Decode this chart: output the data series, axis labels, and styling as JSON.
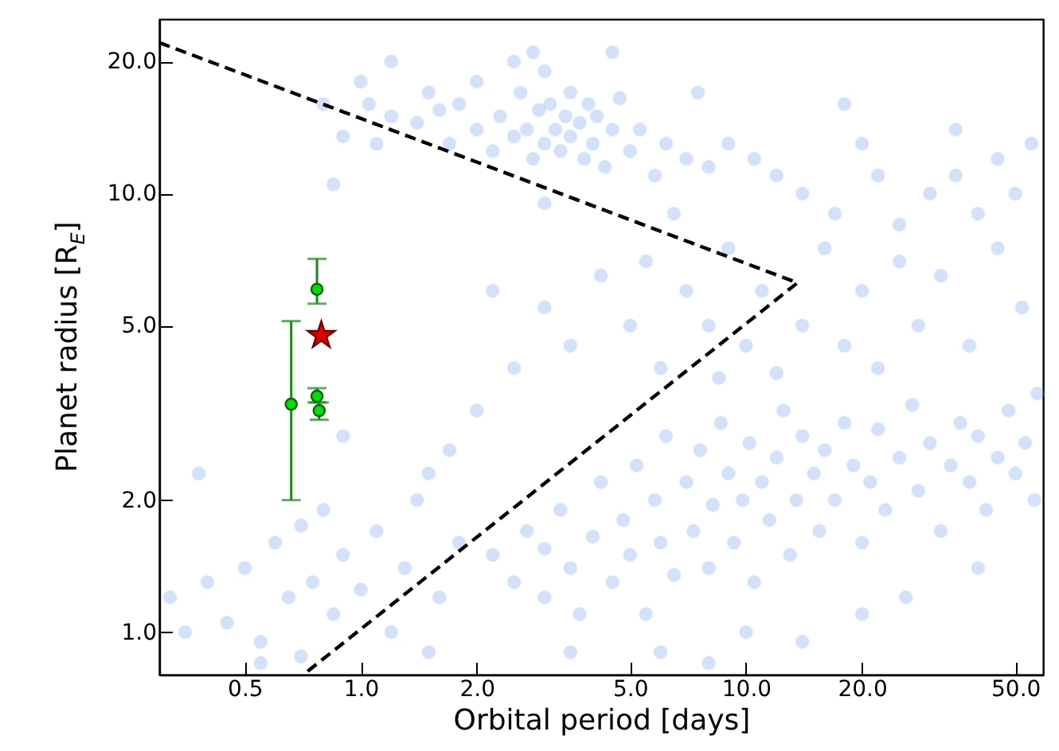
{
  "chart_data": {
    "type": "scatter",
    "xlabel": "Orbital period [days]",
    "ylabel": "Planet radius [R$_{E}$]",
    "log": "xy",
    "grid": false,
    "marker": "circle",
    "legend": false,
    "xlim": [
      0.3,
      59
    ],
    "ylim": [
      0.8,
      25
    ],
    "xticks": [
      0.5,
      {
        "value": 1,
        "label": "1.0"
      },
      {
        "value": 2,
        "label": "2.0"
      },
      {
        "value": 5,
        "label": "5.0"
      },
      {
        "value": 10,
        "label": "10.0"
      },
      {
        "value": 20,
        "label": "20.0"
      },
      {
        "value": 50,
        "label": "50.0"
      }
    ],
    "yticks": [
      {
        "value": 1,
        "label": "1.0"
      },
      {
        "value": 2,
        "label": "2.0"
      },
      {
        "value": 5,
        "label": "5.0"
      },
      {
        "value": 10,
        "label": "10.0"
      },
      {
        "value": 20,
        "label": "20.0"
      }
    ],
    "series": [
      {
        "color": "#6495ed",
        "x": [
          1.0,
          1.05,
          1.2,
          1.4,
          1.5,
          1.6,
          1.7,
          1.8,
          2.0,
          2.0,
          2.2,
          2.3,
          2.5,
          2.6,
          2.7,
          2.8,
          2.9,
          3.0,
          3.0,
          3.1,
          3.2,
          3.3,
          3.4,
          3.5,
          3.5,
          3.7,
          3.8,
          3.9,
          4.0,
          4.1,
          4.3,
          4.5,
          4.7,
          5.0,
          5.3,
          5.8,
          6.2,
          7.0,
          8.0,
          9.0,
          10.5,
          12,
          14,
          17,
          20,
          22,
          25,
          30,
          35,
          40,
          45,
          50,
          55,
          2.5,
          2.8,
          4.5,
          7.5,
          0.8,
          1.2,
          0.85,
          1.1,
          18,
          3,
          6.5,
          35,
          0.9,
          3.0,
          3.5,
          4.2,
          5.0,
          5.5,
          6,
          7,
          8,
          8.5,
          9,
          10,
          11,
          12,
          14,
          16,
          18,
          20,
          22,
          25,
          28,
          32,
          38,
          45,
          52,
          2.0,
          2.5,
          1.7,
          2.2,
          0.9,
          1.5,
          2.2,
          2.5,
          2.7,
          3.0,
          3.0,
          3.3,
          3.5,
          3.7,
          4.0,
          4.2,
          4.5,
          4.8,
          5.0,
          5.2,
          5.5,
          5.8,
          6.0,
          6.2,
          6.5,
          7.0,
          7.3,
          7.6,
          8.0,
          8.2,
          8.6,
          9.0,
          9.3,
          9.8,
          10.2,
          10.5,
          11,
          11.5,
          12,
          12.5,
          13,
          13.5,
          14,
          15,
          15.5,
          16,
          17,
          18,
          19,
          20,
          21,
          22,
          23,
          25,
          27,
          28,
          30,
          32,
          34,
          36,
          38,
          40,
          42,
          45,
          48,
          50,
          53,
          56,
          57,
          6,
          8,
          10,
          14,
          20,
          3.5,
          26,
          40,
          0.32,
          0.35,
          0.38,
          0.4,
          0.45,
          0.5,
          0.55,
          0.6,
          0.65,
          0.7,
          0.75,
          0.8,
          0.85,
          0.9,
          1.0,
          1.1,
          1.2,
          1.3,
          1.4,
          1.6,
          1.8,
          0.55,
          0.7,
          1.5
        ],
        "values": [
          18,
          16,
          15,
          14.5,
          17,
          15.5,
          13,
          16,
          14,
          18,
          12.5,
          15,
          13.5,
          17,
          14,
          12,
          15.5,
          13,
          19,
          16,
          14,
          12.5,
          15,
          13.5,
          17,
          14.5,
          12,
          16,
          13,
          15,
          11.5,
          14,
          16.5,
          12.5,
          14,
          11,
          13,
          12,
          11.5,
          13,
          12,
          11,
          10,
          9,
          13,
          11,
          8.5,
          10,
          11,
          9,
          12,
          10,
          13,
          20,
          21,
          21,
          17,
          16,
          20,
          10.5,
          13,
          16,
          9.5,
          9,
          14,
          13.5,
          5.5,
          4.5,
          6.5,
          5,
          7,
          4,
          6,
          5,
          3.8,
          7.5,
          4.5,
          6,
          3.9,
          5,
          7.5,
          4.5,
          6,
          4,
          7,
          5,
          6.5,
          4.5,
          7.5,
          5.5,
          3.2,
          4,
          2.6,
          6,
          2.8,
          2.3,
          1.5,
          1.3,
          1.7,
          1.2,
          1.55,
          1.9,
          1.4,
          1.1,
          1.65,
          2.2,
          1.3,
          1.8,
          1.5,
          2.4,
          1.1,
          2.0,
          1.6,
          2.8,
          1.35,
          2.2,
          1.7,
          2.6,
          1.4,
          1.95,
          3.0,
          2.3,
          1.6,
          2.0,
          2.7,
          1.3,
          2.2,
          1.8,
          2.5,
          3.2,
          1.5,
          2.0,
          2.8,
          2.3,
          1.7,
          2.6,
          2.0,
          3.0,
          2.4,
          1.6,
          2.2,
          2.9,
          1.9,
          2.5,
          3.3,
          2.1,
          2.7,
          1.7,
          2.4,
          3.0,
          2.2,
          2.8,
          1.9,
          2.5,
          3.2,
          2.3,
          2.7,
          2.0,
          3.5,
          0.9,
          0.85,
          1.0,
          0.95,
          1.1,
          0.9,
          1.2,
          1.4,
          1.2,
          1.0,
          2.3,
          1.3,
          1.05,
          1.4,
          0.95,
          1.6,
          1.2,
          1.75,
          1.3,
          1.9,
          1.1,
          1.5,
          1.25,
          1.7,
          1.0,
          1.4,
          2.0,
          1.2,
          1.6,
          0.85,
          0.88,
          0.9
        ]
      },
      {
        "type": "line",
        "color": "#000000",
        "line_style": "dashed",
        "marker": "none",
        "x": [
          0.3,
          13.6,
          0.71
        ],
        "values": [
          22.1,
          6.26,
          0.8
        ]
      },
      {
        "color": "#00e000",
        "x": [
          0.66,
          0.77,
          0.77,
          0.78
        ],
        "values": [
          3.31,
          6.05,
          3.45,
          3.2
        ],
        "errors": [
          [
            2.0,
            5.12
          ],
          [
            5.61,
            7.1
          ],
          [
            3.34,
            3.6
          ],
          [
            3.05,
            3.34
          ]
        ]
      },
      {
        "color": "#dd0000",
        "marker": "star",
        "x": [
          0.79
        ],
        "values": [
          4.75
        ]
      }
    ]
  }
}
